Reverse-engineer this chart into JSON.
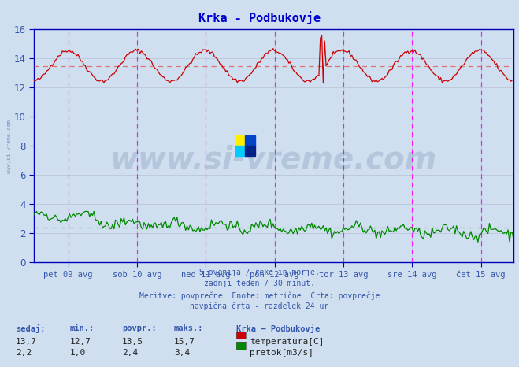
{
  "title": "Krka - Podbukovje",
  "title_color": "#0000cc",
  "bg_color": "#d0dff0",
  "plot_bg_color": "#d0dff0",
  "grid_color": "#b0b8cc",
  "axis_color": "#0000bb",
  "tick_label_color": "#3355aa",
  "n_points": 336,
  "temp_min_val": 12.7,
  "temp_max_val": 15.7,
  "temp_avg": 13.5,
  "flow_min_val": 1.0,
  "flow_max_val": 3.4,
  "flow_avg": 2.4,
  "temp_color": "#cc0000",
  "flow_color": "#008800",
  "avg_line_color_temp": "#dd6666",
  "avg_line_color_flow": "#66aa66",
  "vline_color": "#ff00ff",
  "ymin": 0,
  "ymax": 16.0,
  "yticks": [
    0,
    2,
    4,
    6,
    8,
    10,
    12,
    14,
    16
  ],
  "x_tick_labels": [
    "pet 09 avg",
    "sob 10 avg",
    "ned 11 avg",
    "pon 12 avg",
    "tor 13 avg",
    "sre 14 avg",
    "čet 15 avg"
  ],
  "x_tick_positions": [
    24,
    72,
    120,
    168,
    216,
    264,
    312
  ],
  "vline_positions": [
    24,
    72,
    120,
    168,
    216,
    264,
    312
  ],
  "footer_lines": [
    "Slovenija / reke in morje.",
    "zadnji teden / 30 minut.",
    "Meritve: povprečne  Enote: metrične  Črta: povprečje",
    "navpična črta - razdelek 24 ur"
  ],
  "watermark_text": "www.si-vreme.com",
  "watermark_color": "#1a3a6a",
  "watermark_alpha": 0.15,
  "table_headers": [
    "sedaj:",
    "min.:",
    "povpr.:",
    "maks.:"
  ],
  "table_col1": [
    "13,7",
    "2,2"
  ],
  "table_col2": [
    "12,7",
    "1,0"
  ],
  "table_col3": [
    "13,5",
    "2,4"
  ],
  "table_col4": [
    "15,7",
    "3,4"
  ],
  "table_series_label": "Krka – Podbukovje",
  "table_series1": "temperatura[C]",
  "table_series2": "pretok[m3/s]",
  "side_watermark": "www.si-vreme.com",
  "logo_colors": [
    "#ffee00",
    "#0044cc",
    "#00ccff",
    "#002288"
  ]
}
